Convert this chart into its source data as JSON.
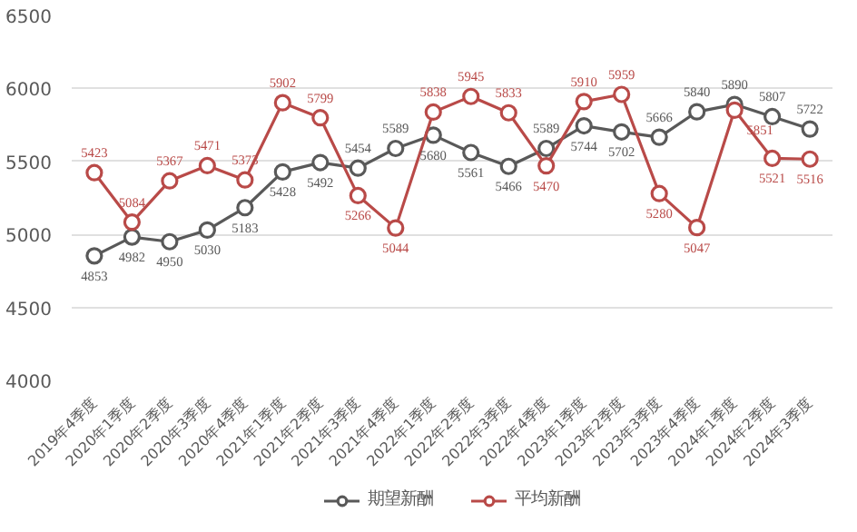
{
  "chart_data": {
    "type": "line",
    "categories": [
      "2019年4季度",
      "2020年1季度",
      "2020年2季度",
      "2020年3季度",
      "2020年4季度",
      "2021年1季度",
      "2021年2季度",
      "2021年3季度",
      "2021年4季度",
      "2022年1季度",
      "2022年2季度",
      "2022年3季度",
      "2022年4季度",
      "2023年1季度",
      "2023年2季度",
      "2023年3季度",
      "2023年4季度",
      "2024年1季度",
      "2024年2季度",
      "2024年3季度"
    ],
    "series": [
      {
        "name": "期望新酬",
        "color": "#595959",
        "values": [
          4853,
          4982,
          4950,
          5030,
          5183,
          5428,
          5492,
          5454,
          5589,
          5680,
          5561,
          5466,
          5589,
          5744,
          5702,
          5666,
          5840,
          5890,
          5807,
          5722
        ]
      },
      {
        "name": "平均新酬",
        "color": "#b94a48",
        "values": [
          5423,
          5084,
          5367,
          5471,
          5373,
          5902,
          5799,
          5266,
          5044,
          5838,
          5945,
          5833,
          5470,
          5910,
          5959,
          5280,
          5047,
          5851,
          5521,
          5516
        ]
      }
    ],
    "ylim": [
      4000,
      6500
    ],
    "yticks": [
      4000,
      4500,
      5000,
      5500,
      6000,
      6500
    ],
    "grid": "y",
    "legend": "bottom",
    "marker": "circle",
    "line_style": "solid",
    "data_labels": true
  }
}
